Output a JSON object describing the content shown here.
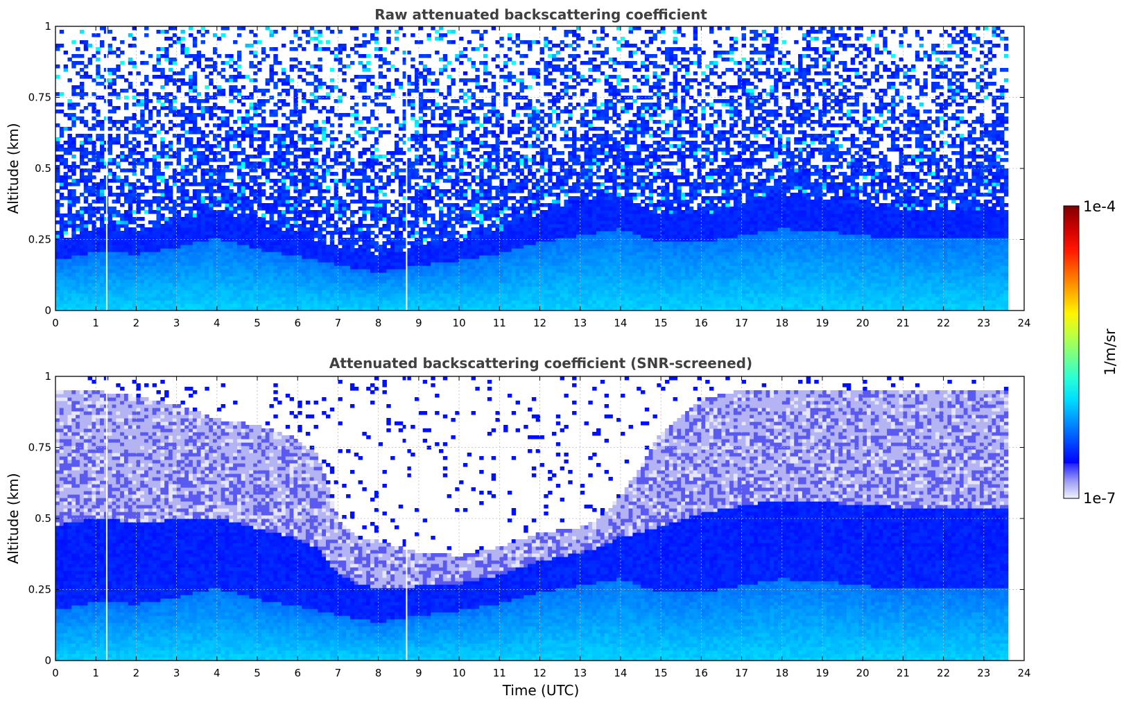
{
  "chart_data": [
    {
      "type": "heatmap",
      "title": "Raw attenuated backscattering coefficient",
      "xlabel": "",
      "ylabel": "Altitude (km)",
      "xlim": [
        0,
        24
      ],
      "ylim": [
        0,
        1
      ],
      "x_ticks": [
        "0",
        "1",
        "2",
        "3",
        "4",
        "5",
        "6",
        "7",
        "8",
        "9",
        "10",
        "11",
        "12",
        "13",
        "14",
        "15",
        "16",
        "17",
        "18",
        "19",
        "20",
        "21",
        "22",
        "23",
        "24"
      ],
      "y_ticks": [
        "0",
        "0.25",
        "0.5",
        "0.75",
        "1"
      ],
      "data_end_time": 23.6,
      "gaps": [
        1.27,
        8.7
      ],
      "grid": true,
      "boundary_layer_top_km": [
        [
          0,
          0.22
        ],
        [
          1,
          0.26
        ],
        [
          2,
          0.25
        ],
        [
          3,
          0.28
        ],
        [
          4,
          0.32
        ],
        [
          5,
          0.27
        ],
        [
          6,
          0.24
        ],
        [
          7,
          0.2
        ],
        [
          8,
          0.17
        ],
        [
          9,
          0.2
        ],
        [
          10,
          0.22
        ],
        [
          11,
          0.25
        ],
        [
          12,
          0.3
        ],
        [
          13,
          0.33
        ],
        [
          14,
          0.36
        ],
        [
          15,
          0.3
        ],
        [
          16,
          0.3
        ],
        [
          17,
          0.33
        ],
        [
          18,
          0.36
        ],
        [
          19,
          0.35
        ],
        [
          20,
          0.33
        ],
        [
          21,
          0.32
        ],
        [
          22,
          0.32
        ],
        [
          23,
          0.32
        ],
        [
          23.6,
          0.32
        ]
      ],
      "noise_floor": "dense blue/white noise above boundary layer"
    },
    {
      "type": "heatmap",
      "title": "Attenuated backscattering coefficient (SNR-screened)",
      "xlabel": "Time (UTC)",
      "ylabel": "Altitude (km)",
      "xlim": [
        0,
        24
      ],
      "ylim": [
        0,
        1
      ],
      "x_ticks": [
        "0",
        "1",
        "2",
        "3",
        "4",
        "5",
        "6",
        "7",
        "8",
        "9",
        "10",
        "11",
        "12",
        "13",
        "14",
        "15",
        "16",
        "17",
        "18",
        "19",
        "20",
        "21",
        "22",
        "23",
        "24"
      ],
      "y_ticks": [
        "0",
        "0.25",
        "0.5",
        "0.75",
        "1"
      ],
      "data_end_time": 23.6,
      "gaps": [
        1.27,
        8.7
      ],
      "grid": true,
      "boundary_layer_top_km": [
        [
          0,
          0.22
        ],
        [
          1,
          0.26
        ],
        [
          2,
          0.25
        ],
        [
          3,
          0.28
        ],
        [
          4,
          0.32
        ],
        [
          5,
          0.27
        ],
        [
          6,
          0.24
        ],
        [
          7,
          0.2
        ],
        [
          8,
          0.17
        ],
        [
          9,
          0.2
        ],
        [
          10,
          0.22
        ],
        [
          11,
          0.25
        ],
        [
          12,
          0.3
        ],
        [
          13,
          0.33
        ],
        [
          14,
          0.36
        ],
        [
          15,
          0.3
        ],
        [
          16,
          0.3
        ],
        [
          17,
          0.33
        ],
        [
          18,
          0.36
        ],
        [
          19,
          0.35
        ],
        [
          20,
          0.33
        ],
        [
          21,
          0.32
        ],
        [
          22,
          0.32
        ],
        [
          23,
          0.32
        ],
        [
          23.6,
          0.32
        ]
      ],
      "screened_top_km": [
        [
          0,
          0.95
        ],
        [
          1,
          0.95
        ],
        [
          2,
          0.93
        ],
        [
          3,
          0.9
        ],
        [
          4,
          0.85
        ],
        [
          5,
          0.83
        ],
        [
          6,
          0.78
        ],
        [
          6.5,
          0.72
        ],
        [
          7,
          0.5
        ],
        [
          7.5,
          0.43
        ],
        [
          8,
          0.42
        ],
        [
          9,
          0.38
        ],
        [
          10,
          0.37
        ],
        [
          11,
          0.4
        ],
        [
          12,
          0.45
        ],
        [
          13,
          0.47
        ],
        [
          13.5,
          0.5
        ],
        [
          14,
          0.58
        ],
        [
          14.5,
          0.68
        ],
        [
          15,
          0.8
        ],
        [
          16,
          0.92
        ],
        [
          17,
          0.95
        ],
        [
          18,
          0.95
        ],
        [
          19,
          0.95
        ],
        [
          20,
          0.95
        ],
        [
          21,
          0.95
        ],
        [
          22,
          0.95
        ],
        [
          23,
          0.95
        ],
        [
          23.6,
          0.95
        ]
      ]
    }
  ],
  "colorbar": {
    "label": "1/m/sr",
    "max_label": "1e-4",
    "min_label": "1e-7",
    "scale": "log",
    "colormap": "jet"
  }
}
